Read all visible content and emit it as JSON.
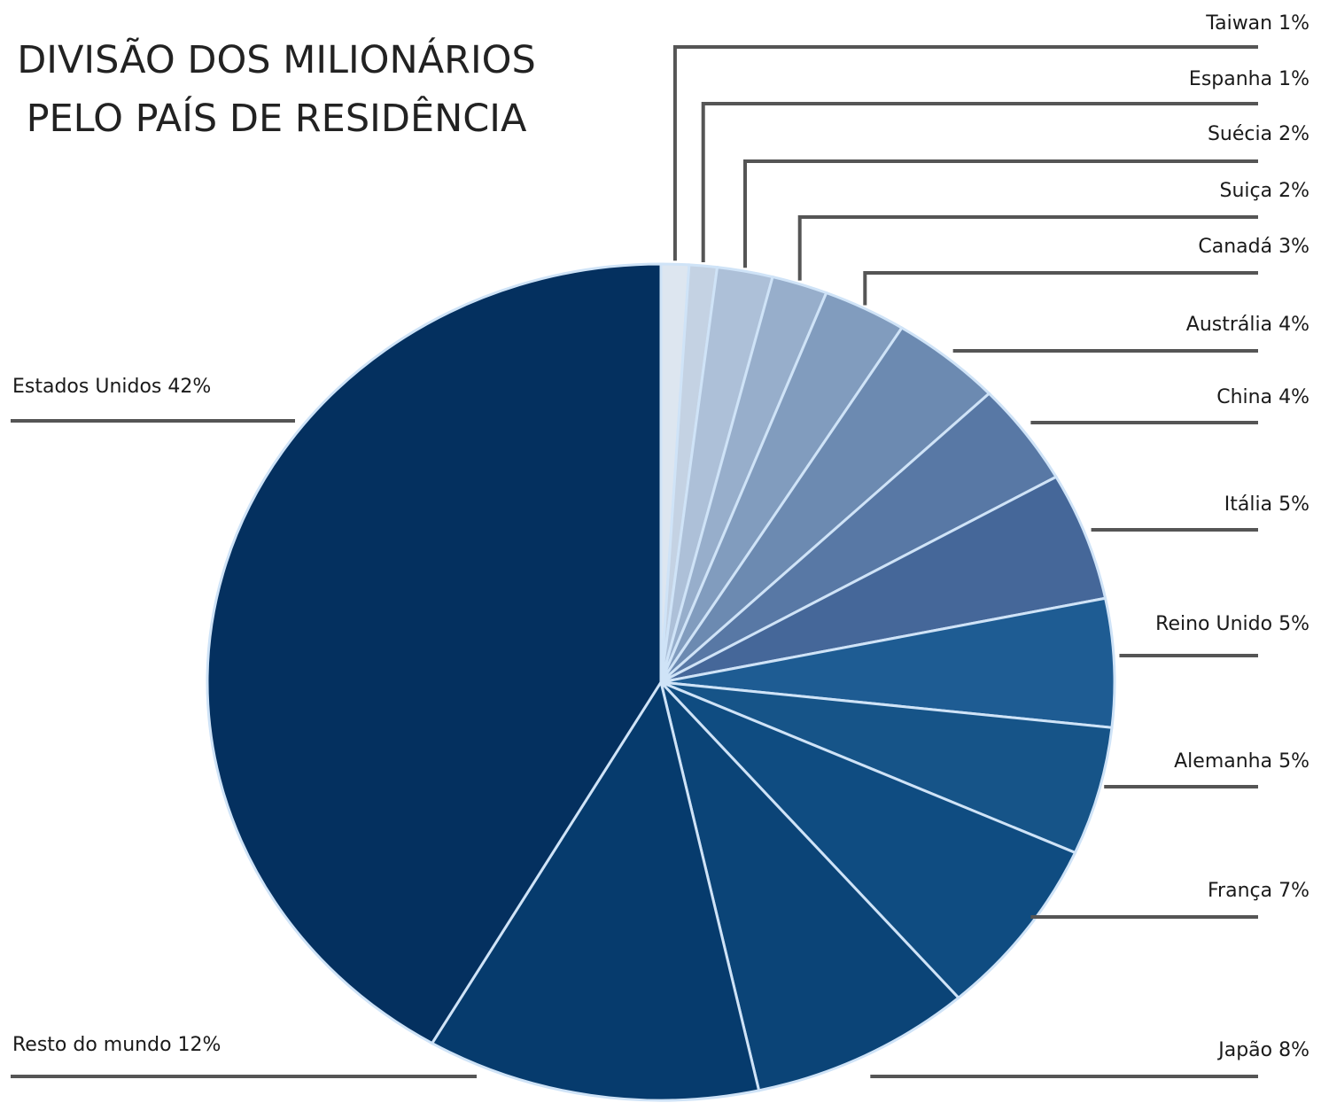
{
  "chart_data": {
    "type": "pie",
    "title_lines": [
      "DIVISÃO DOS MILIONÁRIOS",
      "PELO PAÍS DE RESIDÊNCIA"
    ],
    "slices": [
      {
        "label": "Taiwan 1%",
        "value": 1,
        "color": "#dde6f0"
      },
      {
        "label": "Espanha 1%",
        "value": 1,
        "color": "#c4d2e3"
      },
      {
        "label": "Suécia 2%",
        "value": 2,
        "color": "#adc0d8"
      },
      {
        "label": "Suiça 2%",
        "value": 2,
        "color": "#97aecb"
      },
      {
        "label": "Canadá 3%",
        "value": 3,
        "color": "#819cbe"
      },
      {
        "label": "Austrália 4%",
        "value": 4,
        "color": "#6c8ab1"
      },
      {
        "label": "China 4%",
        "value": 4,
        "color": "#5878a5"
      },
      {
        "label": "Itália 5%",
        "value": 5,
        "color": "#456799"
      },
      {
        "label": "Reino Unido 5%",
        "value": 5,
        "color": "#1e5c93"
      },
      {
        "label": "Alemanha 5%",
        "value": 5,
        "color": "#165488"
      },
      {
        "label": "França 7%",
        "value": 7,
        "color": "#0f4c81"
      },
      {
        "label": "Japão 8%",
        "value": 8,
        "color": "#0b4477"
      },
      {
        "label": "Resto do mundo 12%",
        "value": 12,
        "color": "#063b6d"
      },
      {
        "label": "Estados Unidos 42%",
        "value": 42,
        "color": "#04305f"
      }
    ],
    "order": "clockwise from top",
    "slice_separator_color": "#cfe3f7",
    "leader_line_color": "#555555"
  }
}
